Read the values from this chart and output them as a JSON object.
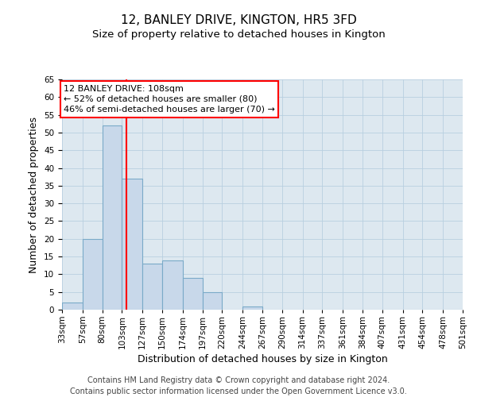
{
  "title_line1": "12, BANLEY DRIVE, KINGTON, HR5 3FD",
  "title_line2": "Size of property relative to detached houses in Kington",
  "xlabel": "Distribution of detached houses by size in Kington",
  "ylabel": "Number of detached properties",
  "footnote": "Contains HM Land Registry data © Crown copyright and database right 2024.\nContains public sector information licensed under the Open Government Licence v3.0.",
  "bin_labels": [
    "33sqm",
    "57sqm",
    "80sqm",
    "103sqm",
    "127sqm",
    "150sqm",
    "174sqm",
    "197sqm",
    "220sqm",
    "244sqm",
    "267sqm",
    "290sqm",
    "314sqm",
    "337sqm",
    "361sqm",
    "384sqm",
    "407sqm",
    "431sqm",
    "454sqm",
    "478sqm",
    "501sqm"
  ],
  "bar_values": [
    2,
    20,
    52,
    37,
    13,
    14,
    9,
    5,
    0,
    1,
    0,
    0,
    0,
    0,
    0,
    0,
    0,
    0,
    0,
    0
  ],
  "bar_color": "#c8d8ea",
  "bar_edgecolor": "#7aaac8",
  "bar_linewidth": 0.8,
  "annotation_text": "12 BANLEY DRIVE: 108sqm\n← 52% of detached houses are smaller (80)\n46% of semi-detached houses are larger (70) →",
  "annotation_box_color": "white",
  "annotation_box_edgecolor": "red",
  "vline_color": "red",
  "vline_x": 108,
  "ylim": [
    0,
    65
  ],
  "yticks": [
    0,
    5,
    10,
    15,
    20,
    25,
    30,
    35,
    40,
    45,
    50,
    55,
    60,
    65
  ],
  "grid_color": "#b8cfe0",
  "bg_color": "#dde8f0",
  "title_fontsize": 11,
  "subtitle_fontsize": 9.5,
  "label_fontsize": 9,
  "tick_fontsize": 7.5,
  "annotation_fontsize": 8,
  "footnote_fontsize": 7
}
